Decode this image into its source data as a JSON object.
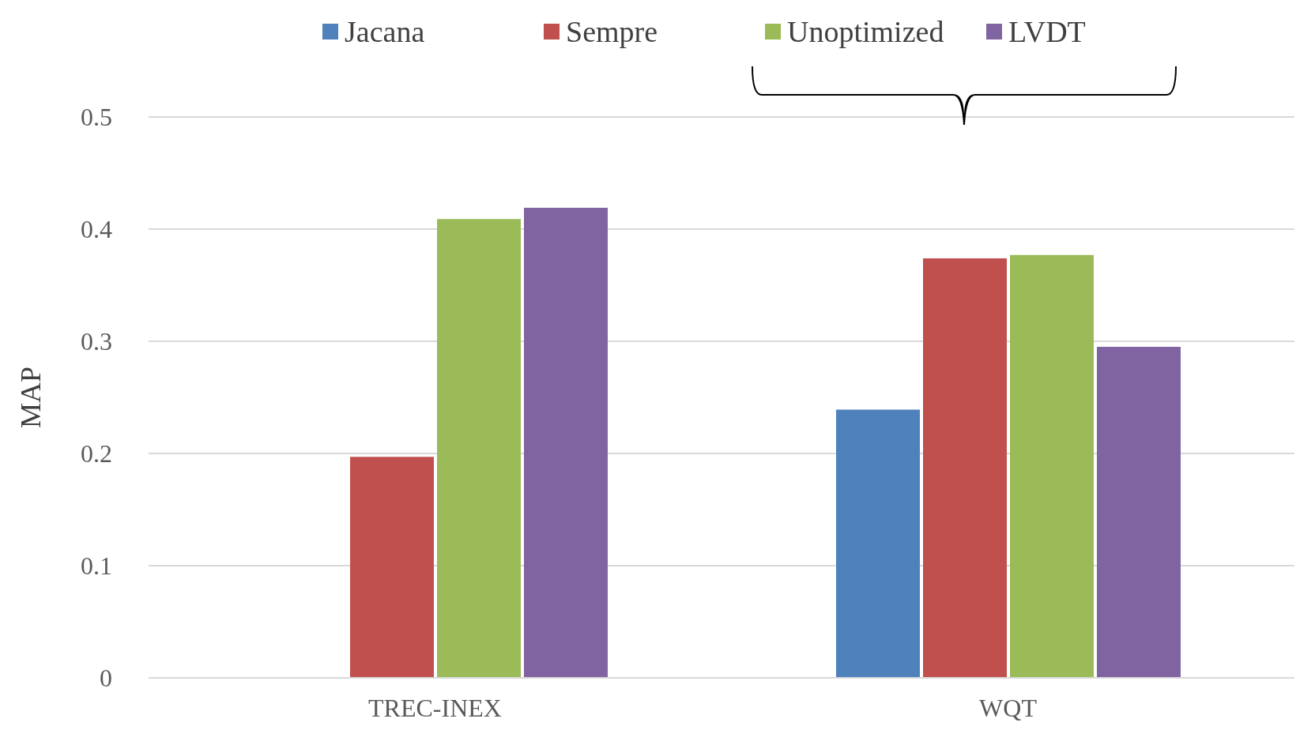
{
  "chart_data": {
    "type": "bar",
    "ylabel": "MAP",
    "categories": [
      "TREC-INEX",
      "WQT"
    ],
    "series": [
      {
        "name": "Jacana",
        "color": "#4f81bd",
        "values": [
          null,
          0.239
        ]
      },
      {
        "name": "Sempre",
        "color": "#c0504d",
        "values": [
          0.197,
          0.374
        ]
      },
      {
        "name": "Unoptimized",
        "color": "#9bbb59",
        "values": [
          0.409,
          0.377
        ]
      },
      {
        "name": "LVDT",
        "color": "#8064a2",
        "values": [
          0.419,
          0.295
        ]
      }
    ],
    "ylim": [
      0,
      0.5
    ],
    "yticks": [
      0,
      0.1,
      0.2,
      0.3,
      0.4,
      0.5
    ],
    "grid": "y",
    "legend": "top"
  }
}
